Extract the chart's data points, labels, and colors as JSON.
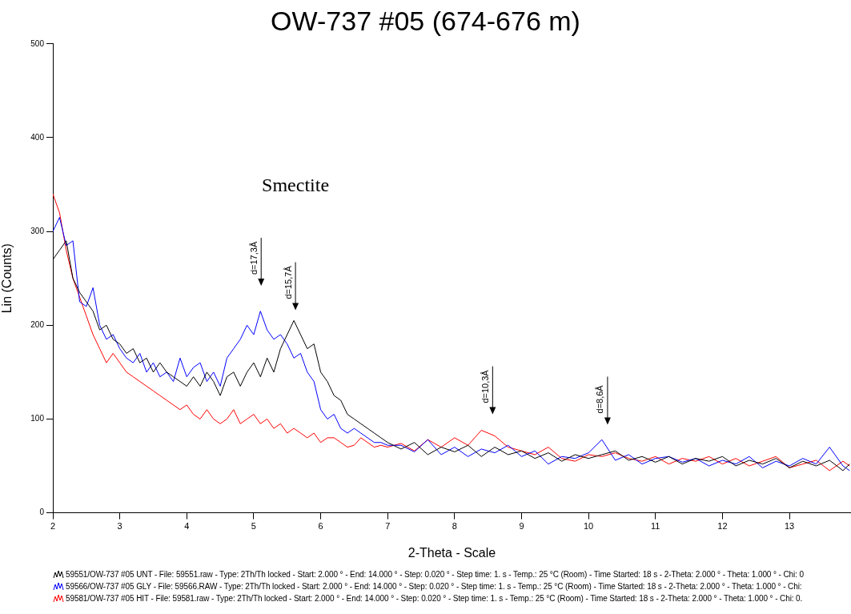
{
  "chart_data": {
    "type": "line",
    "title": "OW-737 #05 (674-676 m)",
    "xlabel": "2-Theta - Scale",
    "ylabel": "Lin (Counts)",
    "x": [
      2.0,
      2.1,
      2.2,
      2.3,
      2.4,
      2.5,
      2.6,
      2.7,
      2.8,
      2.9,
      3.0,
      3.1,
      3.2,
      3.3,
      3.4,
      3.5,
      3.6,
      3.7,
      3.8,
      3.9,
      4.0,
      4.1,
      4.2,
      4.3,
      4.4,
      4.5,
      4.6,
      4.7,
      4.8,
      4.9,
      5.0,
      5.1,
      5.2,
      5.3,
      5.4,
      5.5,
      5.6,
      5.7,
      5.8,
      5.9,
      6.0,
      6.1,
      6.2,
      6.3,
      6.4,
      6.5,
      6.6,
      6.7,
      6.8,
      6.9,
      7.0,
      7.2,
      7.4,
      7.6,
      7.8,
      8.0,
      8.2,
      8.4,
      8.6,
      8.8,
      9.0,
      9.2,
      9.4,
      9.6,
      9.8,
      10.0,
      10.2,
      10.4,
      10.6,
      10.8,
      11.0,
      11.2,
      11.4,
      11.6,
      11.8,
      12.0,
      12.2,
      12.4,
      12.6,
      12.8,
      13.0,
      13.2,
      13.4,
      13.6,
      13.8,
      13.9
    ],
    "series": [
      {
        "name": "59551/OW-737 #05 UNT - File: 59551.raw - Type: 2Th/Th locked - Start: 2.000 ° - End: 14.000 ° - Step: 0.020 ° - Step time: 1. s - Temp.: 25 °C (Room) - Time Started: 18 s - 2-Theta: 2.000 ° - Theta: 1.000 ° - Chi: 0",
        "color": "#000000",
        "values": [
          270,
          280,
          290,
          250,
          235,
          225,
          215,
          195,
          200,
          185,
          180,
          170,
          175,
          160,
          165,
          150,
          160,
          150,
          145,
          140,
          135,
          145,
          135,
          150,
          140,
          125,
          145,
          150,
          135,
          150,
          160,
          145,
          165,
          150,
          175,
          190,
          205,
          190,
          175,
          180,
          150,
          140,
          125,
          120,
          105,
          100,
          95,
          90,
          85,
          80,
          75,
          68,
          75,
          62,
          70,
          65,
          72,
          60,
          70,
          62,
          66,
          58,
          64,
          55,
          62,
          58,
          62,
          66,
          56,
          60,
          54,
          60,
          52,
          58,
          55,
          60,
          50,
          56,
          52,
          58,
          48,
          55,
          50,
          56,
          45,
          52
        ]
      },
      {
        "name": "59566/OW-737 #05 GLY - File: 59566.RAW - Type: 2Th/Th locked - Start: 2.000 ° - End: 14.000 ° - Step: 0.020 ° - Step time: 1. s - Temp.: 25 °C (Room) - Time Started: 18 s - 2-Theta: 2.000 ° - Theta: 1.000 ° - Chi:",
        "color": "#0000ff",
        "values": [
          300,
          315,
          285,
          290,
          225,
          220,
          240,
          200,
          185,
          190,
          175,
          165,
          160,
          170,
          150,
          160,
          145,
          150,
          140,
          165,
          145,
          155,
          160,
          140,
          150,
          135,
          165,
          175,
          185,
          200,
          190,
          215,
          195,
          185,
          190,
          180,
          165,
          170,
          150,
          140,
          110,
          100,
          105,
          90,
          85,
          90,
          85,
          80,
          75,
          75,
          72,
          72,
          65,
          78,
          62,
          70,
          60,
          68,
          64,
          72,
          60,
          66,
          52,
          60,
          58,
          64,
          78,
          56,
          62,
          52,
          58,
          60,
          54,
          58,
          50,
          56,
          52,
          60,
          48,
          55,
          50,
          58,
          52,
          70,
          50,
          45
        ]
      },
      {
        "name": "59581/OW-737 #05 HIT - File: 59581.raw - Type: 2Th/Th locked - Start: 2.000 ° - End: 14.000 ° - Step: 0.020 ° - Step time: 1. s - Temp.: 25 °C (Room) - Time Started: 18 s - 2-Theta: 2.000 ° - Theta: 1.000 ° - Chi: 0.",
        "color": "#ff0000",
        "values": [
          340,
          320,
          280,
          250,
          230,
          210,
          190,
          175,
          160,
          170,
          160,
          150,
          145,
          140,
          135,
          130,
          125,
          120,
          115,
          110,
          115,
          105,
          100,
          110,
          100,
          95,
          100,
          110,
          95,
          100,
          105,
          95,
          100,
          90,
          95,
          85,
          90,
          85,
          80,
          85,
          75,
          80,
          80,
          75,
          70,
          72,
          80,
          75,
          70,
          72,
          70,
          74,
          66,
          78,
          70,
          80,
          72,
          88,
          82,
          70,
          66,
          62,
          70,
          58,
          55,
          62,
          60,
          64,
          58,
          55,
          60,
          52,
          58,
          55,
          60,
          52,
          58,
          50,
          55,
          60,
          48,
          52,
          56,
          45,
          55,
          50
        ]
      }
    ],
    "xlim": [
      2,
      13.92
    ],
    "xticks": [
      2,
      3,
      4,
      5,
      6,
      7,
      8,
      9,
      10,
      11,
      12,
      13
    ],
    "ylim": [
      0,
      500
    ],
    "yticks": [
      0,
      100,
      200,
      300,
      400,
      500
    ],
    "annotations": [
      "Smectite",
      "d=17,3Å",
      "d=15,7Å",
      "d=10,3Å",
      "d=8,6Å"
    ],
    "grid": false,
    "legend": "bottom",
    "marker": "none",
    "line_style": "solid"
  }
}
